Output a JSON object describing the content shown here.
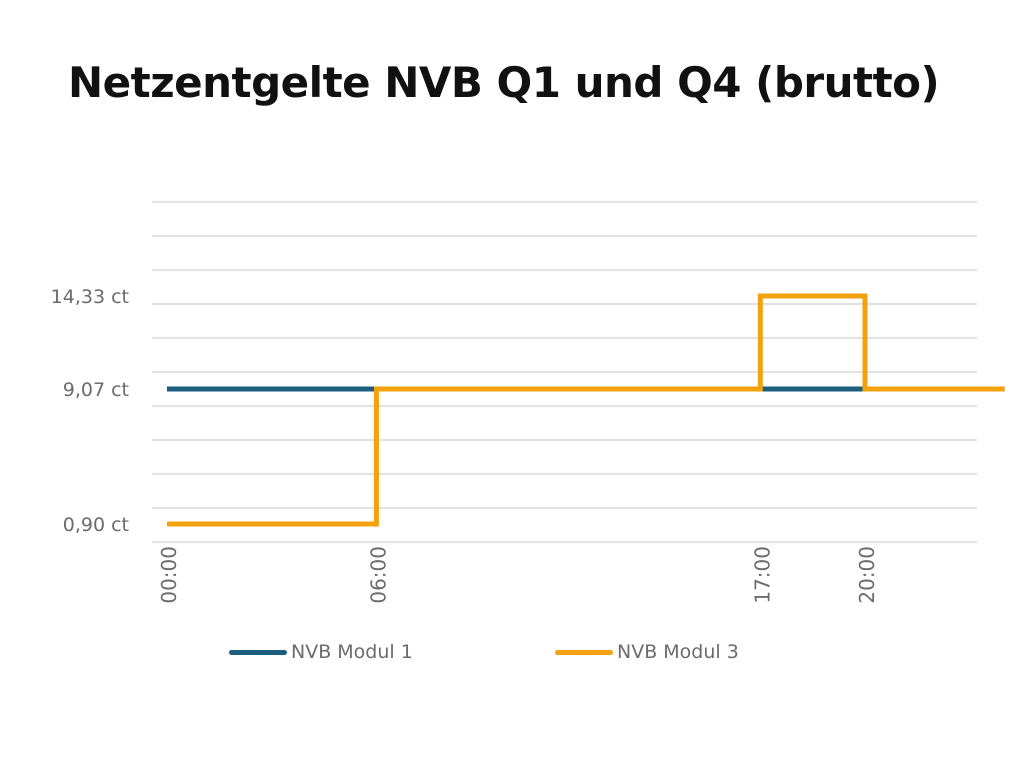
{
  "title": "Netzentgelte NVB Q1 und Q4 (brutto)",
  "chart_data": {
    "type": "line",
    "step": true,
    "title": "Netzentgelte NVB Q1 und Q4 (brutto)",
    "xlabel": "",
    "ylabel": "",
    "x_ticks": [
      "00:00",
      "06:00",
      "17:00",
      "20:00"
    ],
    "x_range_hours": [
      0,
      24
    ],
    "y_ticks": [
      {
        "value": 14.33,
        "label": "14,33 ct"
      },
      {
        "value": 9.07,
        "label": "9,07 ct"
      },
      {
        "value": 0.9,
        "label": "0,90 ct"
      }
    ],
    "grid": true,
    "legend": "bottom",
    "series": [
      {
        "name": "NVB Modul 1",
        "color": "#1b5e7e",
        "points": [
          {
            "x_hours": 0,
            "y": 9.07
          },
          {
            "x_hours": 24,
            "y": 9.07
          }
        ]
      },
      {
        "name": "NVB Modul 3",
        "color": "#f2a20c",
        "points": [
          {
            "x_hours": 0,
            "y": 0.9
          },
          {
            "x_hours": 6,
            "y": 0.9
          },
          {
            "x_hours": 6,
            "y": 9.07
          },
          {
            "x_hours": 17,
            "y": 9.07
          },
          {
            "x_hours": 17,
            "y": 14.33
          },
          {
            "x_hours": 20,
            "y": 14.33
          },
          {
            "x_hours": 20,
            "y": 9.07
          },
          {
            "x_hours": 24,
            "y": 9.07
          }
        ]
      }
    ]
  }
}
